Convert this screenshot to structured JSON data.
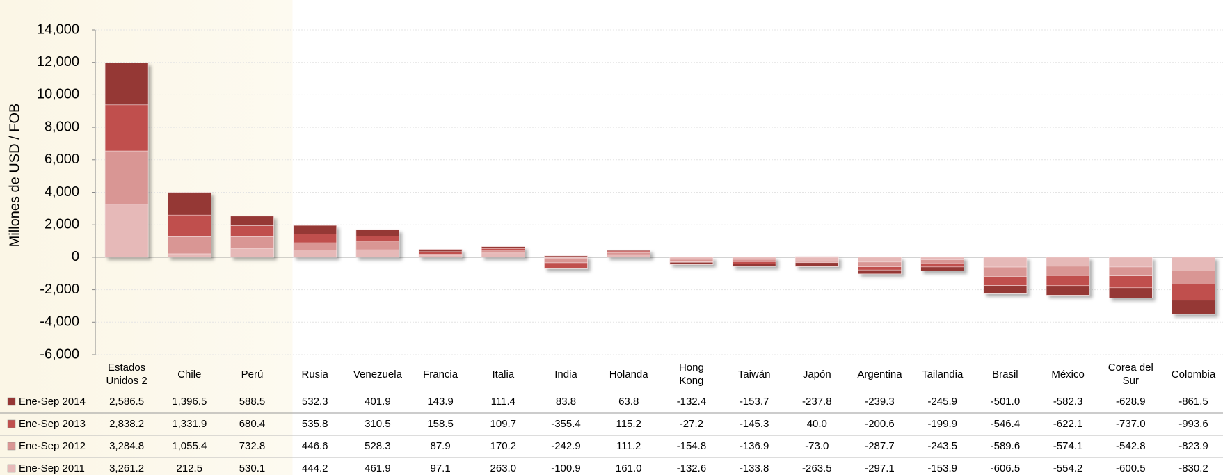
{
  "chart_data": {
    "type": "stacked_bar",
    "y_label": "Millones de USD / FOB",
    "categories": [
      "Estados Unidos 2",
      "Chile",
      "Perú",
      "Rusia",
      "Venezuela",
      "Francia",
      "Italia",
      "India",
      "Holanda",
      "Hong Kong",
      "Taiwán",
      "Japón",
      "Argentina",
      "Tailandia",
      "Brasil",
      "México",
      "Corea del Sur",
      "Colombia"
    ],
    "series": [
      {
        "name": "Ene-Sep 2014",
        "color": "#953735",
        "values": [
          2586.5,
          1396.5,
          588.5,
          532.3,
          401.9,
          143.9,
          111.4,
          83.8,
          63.8,
          -132.4,
          -153.7,
          -237.8,
          -239.3,
          -245.9,
          -501.0,
          -582.3,
          -628.9,
          -861.5
        ],
        "value_labels": [
          "2,586.5",
          "1,396.5",
          "588.5",
          "532.3",
          "401.9",
          "143.9",
          "111.4",
          "83.8",
          "63.8",
          "-132.4",
          "-153.7",
          "-237.8",
          "-239.3",
          "-245.9",
          "-501.0",
          "-582.3",
          "-628.9",
          "-861.5"
        ]
      },
      {
        "name": "Ene-Sep 2013",
        "color": "#c0504d",
        "values": [
          2838.2,
          1331.9,
          680.4,
          535.8,
          310.5,
          158.5,
          109.7,
          -355.4,
          115.2,
          -27.2,
          -145.3,
          40.0,
          -200.6,
          -199.9,
          -546.4,
          -622.1,
          -737.0,
          -993.6
        ],
        "value_labels": [
          "2,838.2",
          "1,331.9",
          "680.4",
          "535.8",
          "310.5",
          "158.5",
          "109.7",
          "-355.4",
          "115.2",
          "-27.2",
          "-145.3",
          "40.0",
          "-200.6",
          "-199.9",
          "-546.4",
          "-622.1",
          "-737.0",
          "-993.6"
        ]
      },
      {
        "name": "Ene-Sep 2012",
        "color": "#d99694",
        "values": [
          3284.8,
          1055.4,
          732.8,
          446.6,
          528.3,
          87.9,
          170.2,
          -242.9,
          111.2,
          -154.8,
          -136.9,
          -73.0,
          -287.7,
          -243.5,
          -589.6,
          -574.1,
          -542.8,
          -823.9
        ],
        "value_labels": [
          "3,284.8",
          "1,055.4",
          "732.8",
          "446.6",
          "528.3",
          "87.9",
          "170.2",
          "-242.9",
          "111.2",
          "-154.8",
          "-136.9",
          "-73.0",
          "-287.7",
          "-243.5",
          "-589.6",
          "-574.1",
          "-542.8",
          "-823.9"
        ]
      },
      {
        "name": "Ene-Sep 2011",
        "color": "#e6b9b8",
        "values": [
          3261.2,
          212.5,
          530.1,
          444.2,
          461.9,
          97.1,
          263.0,
          -100.9,
          161.0,
          -132.6,
          -133.8,
          -263.5,
          -297.1,
          -153.9,
          -606.5,
          -554.2,
          -600.5,
          -830.2
        ],
        "value_labels": [
          "3,261.2",
          "212.5",
          "530.1",
          "444.2",
          "461.9",
          "97.1",
          "263.0",
          "-100.9",
          "161.0",
          "-132.6",
          "-133.8",
          "-263.5",
          "-297.1",
          "-153.9",
          "-606.5",
          "-554.2",
          "-600.5",
          "-830.2"
        ]
      }
    ],
    "ylim": [
      -6000,
      14000
    ],
    "yticks": [
      {
        "value": -6000,
        "label": "-6,000"
      },
      {
        "value": -4000,
        "label": "-4,000"
      },
      {
        "value": -2000,
        "label": "-2,000"
      },
      0,
      {
        "value": 2000,
        "label": "2,000"
      },
      {
        "value": 4000,
        "label": "4,000"
      },
      {
        "value": 6000,
        "label": "6,000"
      },
      {
        "value": 8000,
        "label": "8,000"
      },
      {
        "value": 10000,
        "label": "10,000"
      },
      {
        "value": 12000,
        "label": "12,000"
      },
      {
        "value": 14000,
        "label": "14,000"
      }
    ],
    "grid": true
  }
}
